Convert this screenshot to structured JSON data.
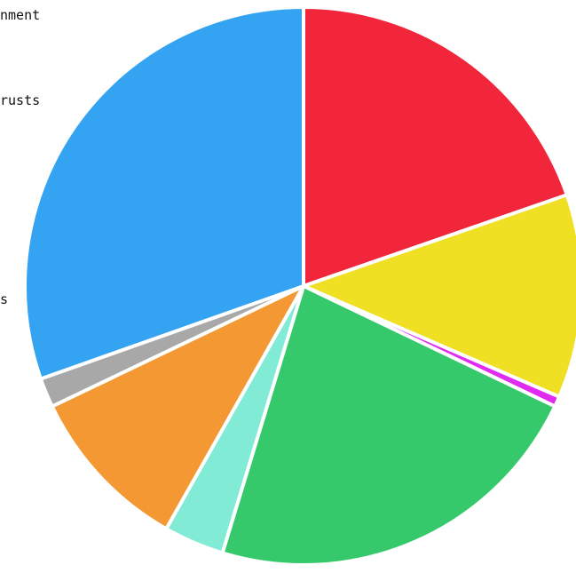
{
  "chart_data": {
    "type": "pie",
    "start_angle_deg": 0,
    "direction": "clockwise",
    "slices": [
      {
        "value": 19.7,
        "color": "#f2263a"
      },
      {
        "value": 11.8,
        "color": "#efe024"
      },
      {
        "value": 0.6,
        "color": "#e02cf0"
      },
      {
        "value": 22.6,
        "color": "#36c96b"
      },
      {
        "value": 3.5,
        "color": "#81ebd6"
      },
      {
        "value": 9.7,
        "color": "#f39832"
      },
      {
        "value": 1.7,
        "color": "#a8a8a8"
      },
      {
        "value": 30.4,
        "color": "#33a3f2"
      }
    ],
    "visible_legend_fragments": [
      "nment",
      "rusts",
      "s"
    ]
  }
}
